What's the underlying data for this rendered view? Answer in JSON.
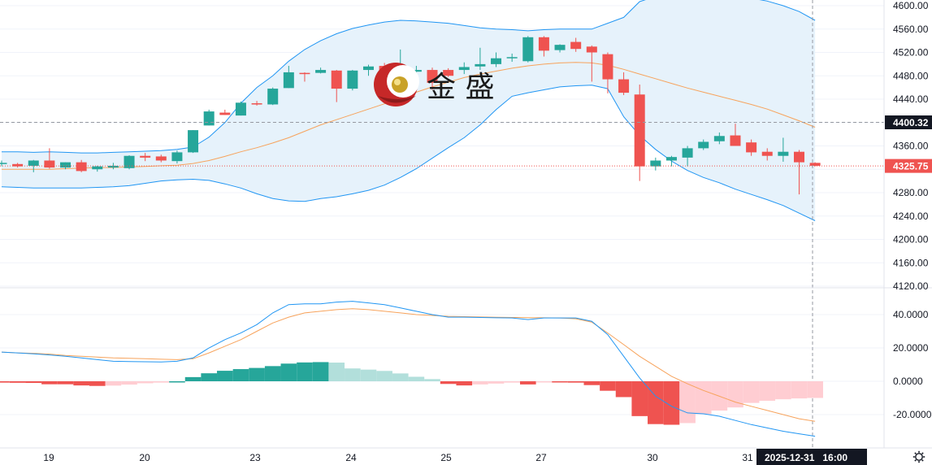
{
  "chart_data": [
    {
      "type": "candlestick",
      "panel": "price",
      "ylim": [
        4120,
        4600
      ],
      "y_ticks": [
        4600,
        4560,
        4520,
        4480,
        4440,
        4400,
        4360,
        4320,
        4280,
        4240,
        4200,
        4160,
        4120
      ],
      "y_tick_labels": [
        "4600.00",
        "4560.00",
        "4520.00",
        "4480.00",
        "4440.00",
        "",
        "4360.00",
        "",
        "4280.00",
        "4240.00",
        "4200.00",
        "4160.00",
        "4120.00"
      ],
      "last_price": "4325.75",
      "reference_price": "4400.32",
      "colors": {
        "up": "#26a69a",
        "down": "#ef5350",
        "bb": "#2196f3",
        "bb_fill": "#e6f2fb",
        "ma": "#f7a35c"
      },
      "candles": [
        {
          "o": 4331,
          "h": 4335,
          "l": 4325,
          "c": 4331
        },
        {
          "o": 4329,
          "h": 4331,
          "l": 4323,
          "c": 4325
        },
        {
          "o": 4326,
          "h": 4336,
          "l": 4315,
          "c": 4335
        },
        {
          "o": 4335,
          "h": 4356,
          "l": 4321,
          "c": 4323
        },
        {
          "o": 4323,
          "h": 4332,
          "l": 4320,
          "c": 4332
        },
        {
          "o": 4332,
          "h": 4336,
          "l": 4315,
          "c": 4317
        },
        {
          "o": 4320,
          "h": 4326,
          "l": 4316,
          "c": 4325
        },
        {
          "o": 4323,
          "h": 4331,
          "l": 4320,
          "c": 4326
        },
        {
          "o": 4322,
          "h": 4344,
          "l": 4320,
          "c": 4343
        },
        {
          "o": 4343,
          "h": 4348,
          "l": 4334,
          "c": 4340
        },
        {
          "o": 4342,
          "h": 4345,
          "l": 4332,
          "c": 4335
        },
        {
          "o": 4334,
          "h": 4352,
          "l": 4330,
          "c": 4349
        },
        {
          "o": 4349,
          "h": 4387,
          "l": 4348,
          "c": 4387
        },
        {
          "o": 4395,
          "h": 4422,
          "l": 4395,
          "c": 4419
        },
        {
          "o": 4417,
          "h": 4422,
          "l": 4413,
          "c": 4413
        },
        {
          "o": 4412,
          "h": 4436,
          "l": 4412,
          "c": 4434
        },
        {
          "o": 4433,
          "h": 4437,
          "l": 4429,
          "c": 4431
        },
        {
          "o": 4431,
          "h": 4460,
          "l": 4430,
          "c": 4458
        },
        {
          "o": 4459,
          "h": 4497,
          "l": 4459,
          "c": 4486
        },
        {
          "o": 4485,
          "h": 4486,
          "l": 4470,
          "c": 4484
        },
        {
          "o": 4485,
          "h": 4494,
          "l": 4484,
          "c": 4490
        },
        {
          "o": 4489,
          "h": 4490,
          "l": 4435,
          "c": 4458
        },
        {
          "o": 4458,
          "h": 4490,
          "l": 4455,
          "c": 4489
        },
        {
          "o": 4490,
          "h": 4499,
          "l": 4480,
          "c": 4496
        },
        {
          "o": 4497,
          "h": 4502,
          "l": 4478,
          "c": 4482
        },
        {
          "o": 4487,
          "h": 4525,
          "l": 4462,
          "c": 4488
        },
        {
          "o": 4487,
          "h": 4497,
          "l": 4470,
          "c": 4490
        },
        {
          "o": 4490,
          "h": 4494,
          "l": 4456,
          "c": 4468
        },
        {
          "o": 4490,
          "h": 4493,
          "l": 4478,
          "c": 4480
        },
        {
          "o": 4490,
          "h": 4503,
          "l": 4483,
          "c": 4495
        },
        {
          "o": 4496,
          "h": 4528,
          "l": 4490,
          "c": 4500
        },
        {
          "o": 4500,
          "h": 4520,
          "l": 4495,
          "c": 4510
        },
        {
          "o": 4510,
          "h": 4518,
          "l": 4504,
          "c": 4512
        },
        {
          "o": 4505,
          "h": 4548,
          "l": 4503,
          "c": 4546
        },
        {
          "o": 4546,
          "h": 4548,
          "l": 4513,
          "c": 4523
        },
        {
          "o": 4524,
          "h": 4534,
          "l": 4520,
          "c": 4533
        },
        {
          "o": 4538,
          "h": 4545,
          "l": 4521,
          "c": 4526
        },
        {
          "o": 4530,
          "h": 4532,
          "l": 4470,
          "c": 4520
        },
        {
          "o": 4517,
          "h": 4520,
          "l": 4450,
          "c": 4474
        },
        {
          "o": 4474,
          "h": 4486,
          "l": 4447,
          "c": 4451
        },
        {
          "o": 4448,
          "h": 4465,
          "l": 4300,
          "c": 4325
        },
        {
          "o": 4325,
          "h": 4340,
          "l": 4318,
          "c": 4335
        },
        {
          "o": 4335,
          "h": 4343,
          "l": 4325,
          "c": 4341
        },
        {
          "o": 4340,
          "h": 4360,
          "l": 4325,
          "c": 4356
        },
        {
          "o": 4356,
          "h": 4371,
          "l": 4353,
          "c": 4367
        },
        {
          "o": 4368,
          "h": 4383,
          "l": 4363,
          "c": 4377
        },
        {
          "o": 4378,
          "h": 4398,
          "l": 4360,
          "c": 4360
        },
        {
          "o": 4366,
          "h": 4371,
          "l": 4343,
          "c": 4349
        },
        {
          "o": 4350,
          "h": 4356,
          "l": 4335,
          "c": 4343
        },
        {
          "o": 4343,
          "h": 4374,
          "l": 4333,
          "c": 4350
        },
        {
          "o": 4350,
          "h": 4353,
          "l": 4277,
          "c": 4332
        },
        {
          "o": 4331,
          "h": 4332,
          "l": 4325,
          "c": 4326
        }
      ],
      "bb_upper": [
        4350,
        4350,
        4349,
        4350,
        4349,
        4348,
        4348,
        4349,
        4350,
        4351,
        4352,
        4354,
        4358,
        4375,
        4400,
        4433,
        4460,
        4480,
        4505,
        4525,
        4540,
        4552,
        4561,
        4567,
        4572,
        4575,
        4574,
        4572,
        4570,
        4566,
        4562,
        4560,
        4559,
        4557,
        4559,
        4560,
        4560,
        4560,
        4570,
        4580,
        4607,
        4616,
        4617,
        4618,
        4617,
        4616,
        4614,
        4613,
        4608,
        4600,
        4590,
        4575
      ],
      "bb_lower": [
        4290,
        4289,
        4288,
        4288,
        4288,
        4288,
        4289,
        4290,
        4292,
        4296,
        4300,
        4302,
        4303,
        4301,
        4295,
        4288,
        4278,
        4270,
        4266,
        4265,
        4270,
        4273,
        4278,
        4284,
        4293,
        4306,
        4321,
        4339,
        4357,
        4374,
        4396,
        4422,
        4445,
        4451,
        4456,
        4461,
        4463,
        4464,
        4458,
        4410,
        4378,
        4354,
        4334,
        4318,
        4306,
        4297,
        4286,
        4277,
        4268,
        4258,
        4245,
        4232
      ],
      "ma": [
        4320,
        4320,
        4320,
        4320,
        4321,
        4322,
        4323,
        4323,
        4324,
        4325,
        4326,
        4327,
        4330,
        4335,
        4342,
        4350,
        4357,
        4365,
        4374,
        4385,
        4396,
        4405,
        4414,
        4423,
        4432,
        4442,
        4452,
        4461,
        4469,
        4477,
        4483,
        4488,
        4493,
        4497,
        4500,
        4502,
        4503,
        4502,
        4498,
        4491,
        4483,
        4475,
        4467,
        4459,
        4452,
        4445,
        4438,
        4431,
        4423,
        4413,
        4403,
        4392
      ]
    },
    {
      "type": "macd",
      "panel": "indicator",
      "ylim": [
        -33,
        53
      ],
      "y_ticks": [
        40,
        20,
        0,
        -20
      ],
      "y_tick_labels": [
        "40.0000",
        "20.0000",
        "0.0000",
        "-20.0000"
      ],
      "colors": {
        "macd": "#2196f3",
        "signal": "#f7a35c",
        "hist_up_strong": "#26a69a",
        "hist_up_weak": "#b2dfdb",
        "hist_down_strong": "#ef5350",
        "hist_down_weak": "#ffcdd2"
      },
      "histogram": [
        -0.8,
        -0.9,
        -1.0,
        -1.8,
        -1.8,
        -2.5,
        -2.8,
        -2.6,
        -2.0,
        -1.2,
        -0.8,
        0.0,
        2.5,
        4.8,
        6.3,
        7.3,
        8.0,
        9.1,
        10.6,
        11.3,
        11.5,
        11.2,
        7.7,
        7.0,
        6.2,
        4.7,
        2.7,
        1.3,
        -1.6,
        -2.5,
        -1.9,
        -1.4,
        -0.8,
        -1.9,
        -0.2,
        -0.4,
        -0.8,
        -2.3,
        -5.7,
        -9.5,
        -20.9,
        -25.7,
        -26.1,
        -25.1,
        -19.7,
        -17.6,
        -15.7,
        -13.0,
        -11.7,
        -10.8,
        -10.3,
        -10.0
      ],
      "macd": [
        17.5,
        17.0,
        16.5,
        15.8,
        15.0,
        14.0,
        13.0,
        12.0,
        11.8,
        11.7,
        11.6,
        12.0,
        14.0,
        20.0,
        25.0,
        29.0,
        34.0,
        41.0,
        46.0,
        46.5,
        46.5,
        47.5,
        48.0,
        47.0,
        46.0,
        44.0,
        42.0,
        40.0,
        38.5,
        38.5,
        38.3,
        38.1,
        38.0,
        37.0,
        38.0,
        38.0,
        38.0,
        36.0,
        28.0,
        15.0,
        2.0,
        -9.0,
        -15.0,
        -19.0,
        -19.5,
        -21.0,
        -23.5,
        -26.0,
        -28.0,
        -30.0,
        -31.5,
        -33.0
      ],
      "signal": [
        17.5,
        17.0,
        16.8,
        16.3,
        15.5,
        15.0,
        14.5,
        14.0,
        13.8,
        13.5,
        13.2,
        13.0,
        13.5,
        17.0,
        21.0,
        25.0,
        30.0,
        35.0,
        38.5,
        41.0,
        42.0,
        43.0,
        43.5,
        43.0,
        42.0,
        41.0,
        40.0,
        39.5,
        39.0,
        38.8,
        38.6,
        38.4,
        38.3,
        38.2,
        38.1,
        38.0,
        37.5,
        35.5,
        29.0,
        22.0,
        15.0,
        9.0,
        3.0,
        -1.5,
        -5.5,
        -9.0,
        -12.5,
        -15.0,
        -17.5,
        -20.0,
        -22.5,
        -24.0
      ]
    }
  ],
  "x_axis": {
    "labels": [
      "19",
      "20",
      "23",
      "24",
      "25",
      "27",
      "30",
      "31"
    ],
    "current_time": "2025-12-31   16:00"
  },
  "logo": {
    "text": "金 盛"
  },
  "settings_icon": "gear-icon"
}
